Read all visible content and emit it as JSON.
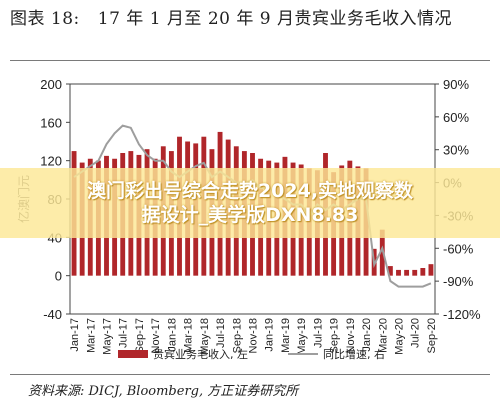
{
  "figure_title": {
    "label": "图表 18:",
    "text": "17 年 1 月至 20 年 9 月贵宾业务毛收入情况"
  },
  "overlay": {
    "line1": "澳门彩出号综合走势2024,实地观察数",
    "line2": "据设计_美学版DXN8.83"
  },
  "source": "资料来源: DICJ, Bloomberg, 方正证券研究所",
  "colors": {
    "bar": "#b0262a",
    "line": "#9e9e9e",
    "axis": "#444444",
    "grid": "#d9d9d9"
  },
  "chart_data": {
    "type": "bar",
    "title": "",
    "ylabel": "亿澳门元",
    "ylim": [
      -40,
      200
    ],
    "y2lim": [
      -1.2,
      0.9
    ],
    "yticks": [
      "200",
      "160",
      "120",
      "80",
      "40",
      "0",
      "-40"
    ],
    "y2ticks": [
      "90%",
      "60%",
      "30%",
      "0%",
      "-30%",
      "-60%",
      "-90%",
      "-120%"
    ],
    "categories": [
      "Jan-17",
      "Feb-17",
      "Mar-17",
      "Apr-17",
      "May-17",
      "Jun-17",
      "Jul-17",
      "Aug-17",
      "Sep-17",
      "Oct-17",
      "Nov-17",
      "Dec-17",
      "Jan-18",
      "Feb-18",
      "Mar-18",
      "Apr-18",
      "May-18",
      "Jun-18",
      "Jul-18",
      "Aug-18",
      "Sep-18",
      "Oct-18",
      "Nov-18",
      "Dec-18",
      "Jan-19",
      "Feb-19",
      "Mar-19",
      "Apr-19",
      "May-19",
      "Jun-19",
      "Jul-19",
      "Aug-19",
      "Sep-19",
      "Oct-19",
      "Nov-19",
      "Dec-19",
      "Jan-20",
      "Feb-20",
      "Mar-20",
      "Apr-20",
      "May-20",
      "Jun-20",
      "Jul-20",
      "Aug-20",
      "Sep-20"
    ],
    "xtick_labels": [
      "Jan-17",
      "Mar-17",
      "May-17",
      "Jul-17",
      "Sep-17",
      "Nov-17",
      "Jan-18",
      "Mar-18",
      "May-18",
      "Jul-18",
      "Sep-18",
      "Nov-18",
      "Jan-19",
      "Mar-19",
      "May-19",
      "Jul-19",
      "Sep-19",
      "Nov-19",
      "Jan-20",
      "Mar-20",
      "May-20",
      "Jul-20",
      "Sep-20"
    ],
    "series": [
      {
        "name": "贵宾业务毛收入, 左",
        "type": "bar",
        "axis": "left",
        "values": [
          130,
          118,
          122,
          120,
          125,
          122,
          128,
          130,
          126,
          132,
          122,
          135,
          130,
          145,
          140,
          138,
          145,
          132,
          150,
          142,
          135,
          130,
          128,
          122,
          120,
          118,
          124,
          118,
          116,
          112,
          110,
          128,
          108,
          115,
          120,
          114,
          112,
          28,
          48,
          10,
          6,
          6,
          6,
          8,
          12
        ]
      },
      {
        "name": "同比增速, 右",
        "type": "line",
        "axis": "right",
        "values": [
          0.05,
          0.1,
          0.15,
          0.2,
          0.35,
          0.45,
          0.52,
          0.5,
          0.35,
          0.25,
          0.2,
          0.2,
          0.1,
          0.05,
          0.1,
          0.15,
          0.18,
          0.05,
          0.1,
          0.05,
          0.0,
          0.0,
          0.02,
          -0.05,
          -0.05,
          -0.1,
          -0.15,
          -0.2,
          -0.2,
          -0.3,
          -0.2,
          -0.25,
          -0.2,
          -0.25,
          -0.2,
          -0.15,
          -0.15,
          -0.75,
          -0.6,
          -0.9,
          -0.95,
          -0.95,
          -0.95,
          -0.95,
          -0.92
        ]
      }
    ],
    "legend_position": "bottom",
    "grid": false
  }
}
